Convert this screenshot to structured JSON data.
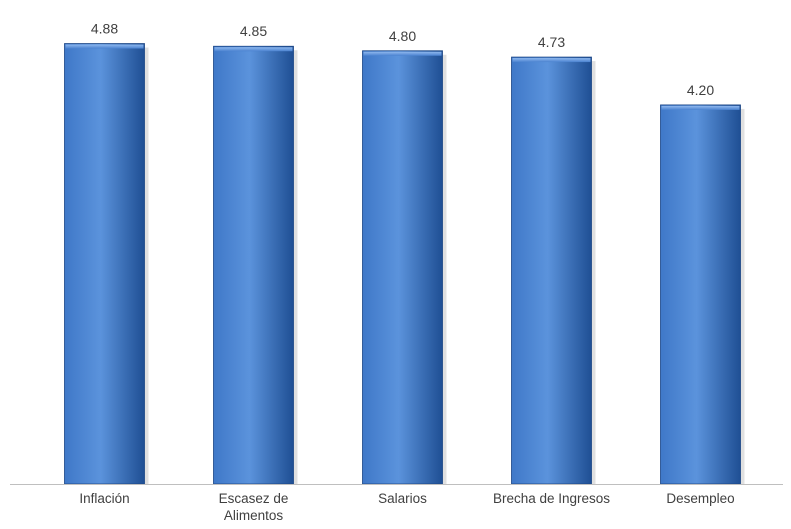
{
  "chart_data": {
    "type": "bar",
    "title": "",
    "xlabel": "",
    "ylabel": "",
    "categories": [
      [
        "Inflación"
      ],
      [
        "Escasez de",
        "Alimentos"
      ],
      [
        "Salarios"
      ],
      [
        "Brecha de Ingresos"
      ],
      [
        "Desempleo"
      ]
    ],
    "values": [
      4.88,
      4.85,
      4.8,
      4.73,
      4.2
    ],
    "value_labels": [
      "4.88",
      "4.85",
      "4.80",
      "4.73",
      "4.20"
    ],
    "ylim": [
      0,
      5.03
    ],
    "grid": false,
    "legend": "none",
    "colors": {
      "bar_light": "#5b93dc",
      "bar_mid": "#3f78c8",
      "bar_dark": "#1f4f94",
      "bar_edge": "#1b4585",
      "axis": "#bfbfbf",
      "text": "#404040"
    }
  }
}
